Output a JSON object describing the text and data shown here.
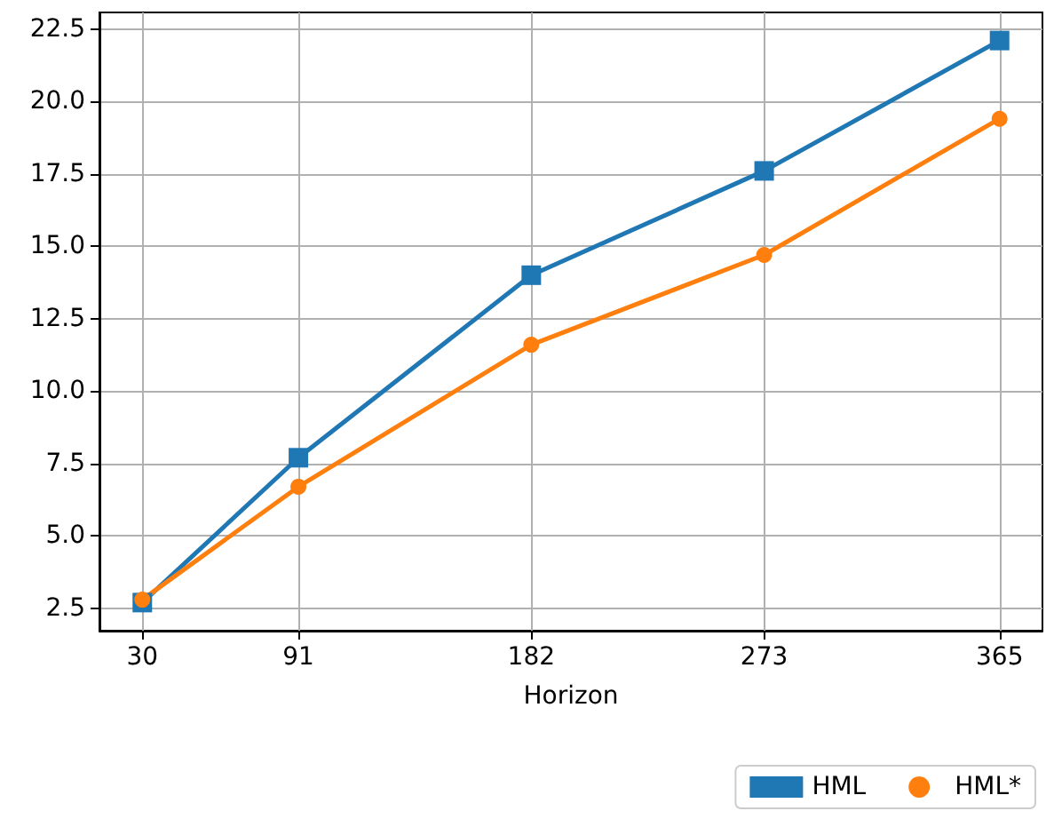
{
  "chart_data": {
    "type": "line",
    "xlabel": "Horizon",
    "x": [
      30,
      91,
      182,
      273,
      365
    ],
    "series": [
      {
        "name": "HML",
        "color": "#1f77b4",
        "marker": "square",
        "values": [
          2.7,
          7.7,
          14.0,
          17.6,
          22.1
        ]
      },
      {
        "name": "HML*",
        "color": "#ff7f0e",
        "marker": "circle",
        "values": [
          2.8,
          6.7,
          11.6,
          14.7,
          19.4
        ]
      }
    ],
    "xlim": [
      13.25,
      381.75
    ],
    "xticks": [
      30,
      91,
      182,
      273,
      365
    ],
    "ylim": [
      1.73,
      23.07
    ],
    "yticks": [
      {
        "value": 2.5,
        "label": "2.5"
      },
      {
        "value": 5,
        "label": "5.0"
      },
      {
        "value": 7.5,
        "label": "7.5"
      },
      {
        "value": 10,
        "label": "10.0"
      },
      {
        "value": 12.5,
        "label": "12.5"
      },
      {
        "value": 15,
        "label": "15.0"
      },
      {
        "value": 17.5,
        "label": "17.5"
      },
      {
        "value": 20,
        "label": "20.0"
      },
      {
        "value": 22.5,
        "label": "22.5"
      }
    ],
    "grid": true,
    "legend": "bottom right",
    "line_style": "solid"
  }
}
